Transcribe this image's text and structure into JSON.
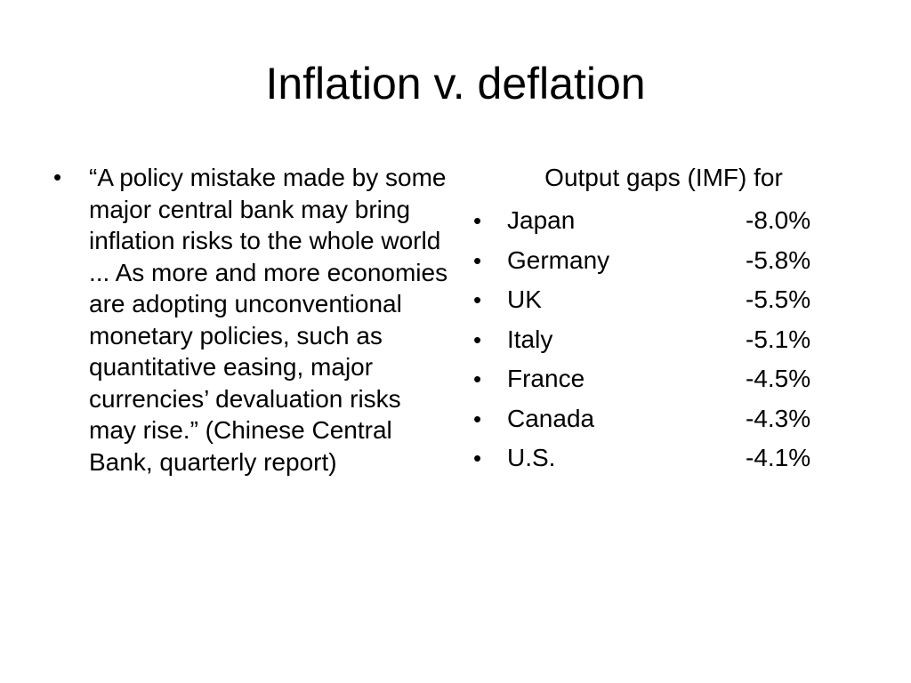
{
  "slide": {
    "title": "Inflation v. deflation"
  },
  "left": {
    "bullet_glyph": "•",
    "quote": "“A policy mistake made by some major central bank may bring inflation risks to the whole world ... As more and more economies are adopting unconventional monetary policies, such as quantitative easing, major currencies’ devaluation risks may rise.” (Chinese Central Bank, quarterly report)"
  },
  "right": {
    "heading": "Output gaps (IMF) for",
    "bullet_glyph": "•",
    "rows": [
      {
        "country": "Japan",
        "value": "-8.0%"
      },
      {
        "country": "Germany",
        "value": "-5.8%"
      },
      {
        "country": "UK",
        "value": "-5.5%"
      },
      {
        "country": "Italy",
        "value": "-5.1%"
      },
      {
        "country": "France",
        "value": "-4.5%"
      },
      {
        "country": "Canada",
        "value": "-4.3%"
      },
      {
        "country": "U.S.",
        "value": "-4.1%"
      }
    ]
  }
}
